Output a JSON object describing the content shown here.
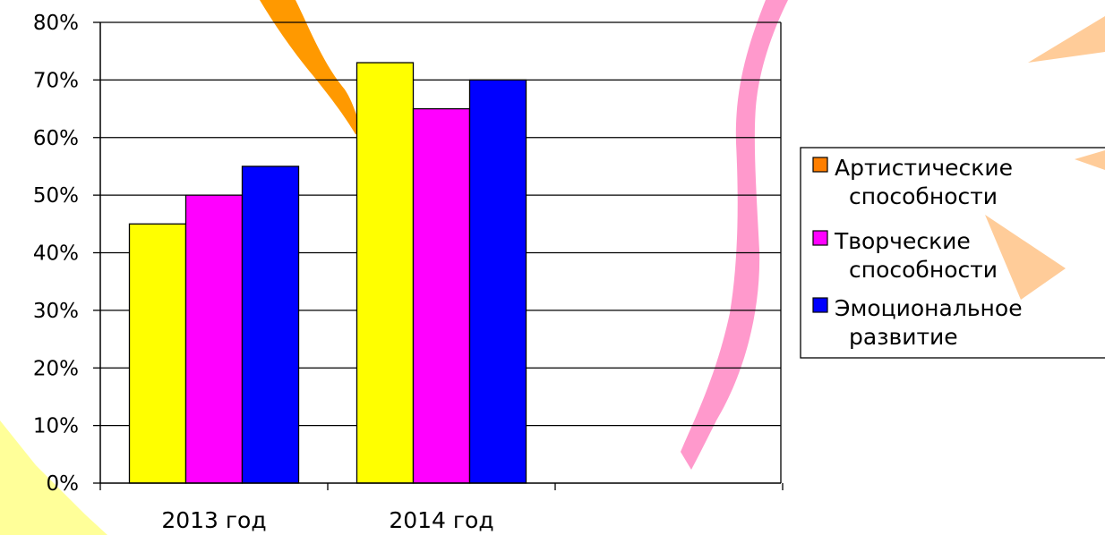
{
  "chart_data": {
    "type": "bar",
    "categories": [
      "2013 год",
      "2014 год"
    ],
    "series": [
      {
        "name": "Артистические способности",
        "legend_lines": [
          "Артистические",
          "способности"
        ],
        "bar_color": "#ffff00",
        "swatch_color": "#ff7f00",
        "values": [
          45,
          73
        ]
      },
      {
        "name": "Творческие способности",
        "legend_lines": [
          "Творческие",
          "способности"
        ],
        "bar_color": "#ff00ff",
        "swatch_color": "#ff00ff",
        "values": [
          50,
          65
        ]
      },
      {
        "name": "Эмоциональное развитие",
        "legend_lines": [
          "Эмоциональное",
          "развитие"
        ],
        "bar_color": "#0000ff",
        "swatch_color": "#0000ff",
        "values": [
          55,
          70
        ]
      }
    ],
    "ylim": [
      0,
      80
    ],
    "y_ticks": [
      "0%",
      "10%",
      "20%",
      "30%",
      "40%",
      "50%",
      "60%",
      "70%",
      "80%"
    ],
    "grid": true,
    "legend_position": "right",
    "xlabel": "",
    "ylabel": ""
  }
}
